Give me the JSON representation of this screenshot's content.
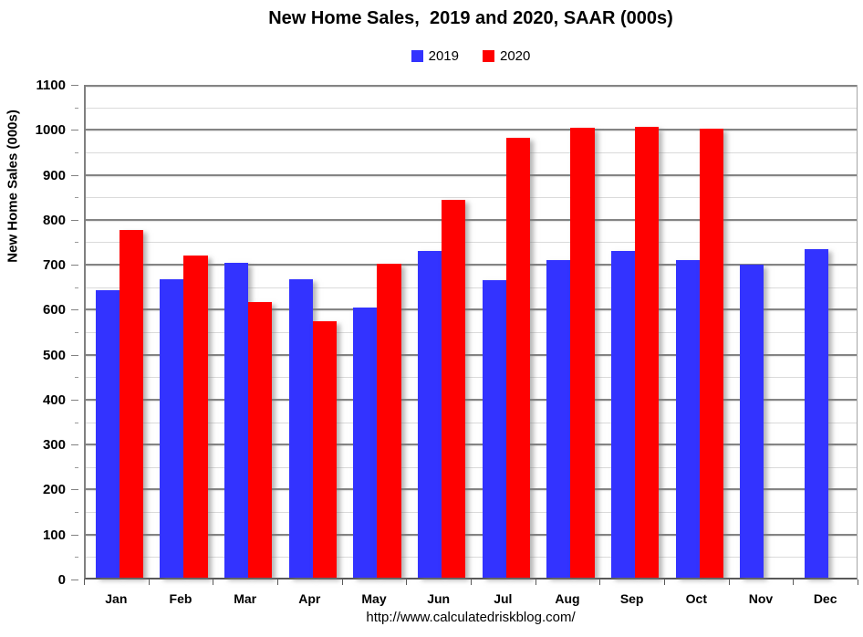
{
  "title": "New Home Sales,  2019 and 2020, SAAR (000s)",
  "footer": {
    "url": "http://www.calculatedriskblog.com/"
  },
  "colors": {
    "series_2019": "#3333FF",
    "series_2020": "#FF0000",
    "grid_major": "#848484",
    "grid_minor": "#DADADA",
    "axis": "#808080",
    "text": "#000000",
    "background": "#FFFFFF"
  },
  "chart_data": {
    "type": "bar",
    "title": "New Home Sales,  2019 and 2020, SAAR (000s)",
    "categories": [
      "Jan",
      "Feb",
      "Mar",
      "Apr",
      "May",
      "Jun",
      "Jul",
      "Aug",
      "Sep",
      "Oct",
      "Nov",
      "Dec"
    ],
    "series": [
      {
        "name": "2019",
        "color": "#3333FF",
        "values": [
          640,
          664,
          701,
          664,
          600,
          727,
          661,
          706,
          727,
          707,
          697,
          731
        ]
      },
      {
        "name": "2020",
        "color": "#FF0000",
        "values": [
          774,
          716,
          612,
          570,
          698,
          840,
          979,
          1001,
          1002,
          999,
          null,
          null
        ]
      }
    ],
    "xlabel": "",
    "ylabel": "New Home Sales (000s)",
    "ylim": [
      0,
      1100
    ],
    "y_major_step": 100,
    "y_minor_step": 50,
    "y_ticks": [
      0,
      100,
      200,
      300,
      400,
      500,
      600,
      700,
      800,
      900,
      1000,
      1100
    ],
    "grid": true,
    "legend_position": "top"
  }
}
